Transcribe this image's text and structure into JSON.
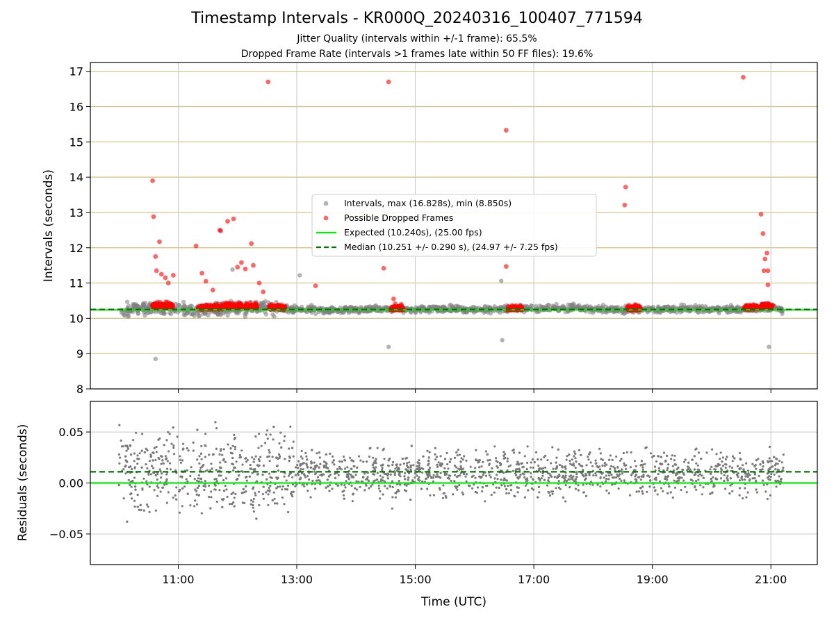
{
  "chart_data": [
    {
      "type": "scatter",
      "panel": "intervals",
      "title": "Timestamp Intervals - KR000Q_20240316_100407_771594",
      "subtitle_lines": [
        "Jitter Quality (intervals within +/-1 frame): 65.5%",
        "Dropped Frame Rate (intervals >1 frames late within 50 FF files): 19.6%"
      ],
      "xlabel": "",
      "ylabel": "Intervals (seconds)",
      "xlim": [
        "09:31",
        "21:47"
      ],
      "ylim": [
        8,
        17.25
      ],
      "yticks": [
        8,
        9,
        10,
        11,
        12,
        13,
        14,
        15,
        16,
        17
      ],
      "xticks": [
        "11:00",
        "13:00",
        "15:00",
        "17:00",
        "19:00",
        "21:00"
      ],
      "grid": true,
      "legend_position": "center",
      "legend": [
        {
          "label": "Intervals, max (16.828s), min (8.850s)",
          "kind": "marker",
          "color": "#808080"
        },
        {
          "label": "Possible Dropped Frames",
          "kind": "marker",
          "color": "#ff0000"
        },
        {
          "label": "Expected (10.240s), (25.00 fps)",
          "kind": "solid-line",
          "color": "#00ee00"
        },
        {
          "label": "Median (10.251 +/- 0.290 s), (24.97 +/- 7.25 fps)",
          "kind": "dashed-line",
          "color": "#007700"
        }
      ],
      "expected_interval": 10.24,
      "median_interval": 10.251,
      "series": [
        {
          "name": "Intervals, max (16.828s), min (8.850s)",
          "color": "#808080",
          "x": [
            "10:02",
            "10:40",
            "11:00",
            "11:30",
            "12:00",
            "12:30",
            "13:00",
            "13:30",
            "14:00",
            "14:30",
            "15:00",
            "15:30",
            "16:00",
            "16:30",
            "17:00",
            "17:30",
            "18:00",
            "18:30",
            "19:00",
            "19:30",
            "20:00",
            "20:30",
            "21:00",
            "21:12"
          ],
          "y": [
            10.25,
            10.3,
            10.28,
            10.22,
            10.27,
            10.3,
            10.26,
            10.23,
            10.25,
            10.28,
            10.24,
            10.26,
            10.25,
            10.27,
            10.28,
            10.3,
            10.26,
            10.24,
            10.25,
            10.27,
            10.26,
            10.25,
            10.3,
            10.24
          ],
          "notable": [
            {
              "x": "10:37",
              "y": 8.85
            },
            {
              "x": "11:55",
              "y": 11.38
            },
            {
              "x": "13:03",
              "y": 11.22
            },
            {
              "x": "14:33",
              "y": 9.19
            },
            {
              "x": "16:27",
              "y": 11.06
            },
            {
              "x": "16:28",
              "y": 9.38
            },
            {
              "x": "20:58",
              "y": 9.19
            }
          ]
        },
        {
          "name": "Possible Dropped Frames",
          "color": "#ff0000",
          "clusters": [
            {
              "x_start": "10:34",
              "x_end": "10:55",
              "y_level": 10.35
            },
            {
              "x_start": "11:20",
              "x_end": "11:45",
              "y_level": 10.3
            },
            {
              "x_start": "11:45",
              "x_end": "12:20",
              "y_level": 10.35
            },
            {
              "x_start": "12:32",
              "x_end": "12:48",
              "y_level": 10.3
            },
            {
              "x_start": "14:35",
              "x_end": "14:48",
              "y_level": 10.28
            },
            {
              "x_start": "16:33",
              "x_end": "16:48",
              "y_level": 10.28
            },
            {
              "x_start": "18:34",
              "x_end": "18:48",
              "y_level": 10.28
            },
            {
              "x_start": "20:32",
              "x_end": "20:48",
              "y_level": 10.3
            },
            {
              "x_start": "20:50",
              "x_end": "21:02",
              "y_level": 10.35
            }
          ],
          "outliers": [
            {
              "x": "10:34",
              "y": 13.9
            },
            {
              "x": "10:35",
              "y": 12.88
            },
            {
              "x": "10:37",
              "y": 11.75
            },
            {
              "x": "10:38",
              "y": 11.35
            },
            {
              "x": "10:41",
              "y": 12.17
            },
            {
              "x": "10:43",
              "y": 11.25
            },
            {
              "x": "10:47",
              "y": 11.15
            },
            {
              "x": "10:50",
              "y": 11.0
            },
            {
              "x": "10:55",
              "y": 11.22
            },
            {
              "x": "11:18",
              "y": 12.05
            },
            {
              "x": "11:24",
              "y": 11.28
            },
            {
              "x": "11:28",
              "y": 11.05
            },
            {
              "x": "11:35",
              "y": 10.8
            },
            {
              "x": "11:42",
              "y": 12.5
            },
            {
              "x": "11:43",
              "y": 12.48
            },
            {
              "x": "11:50",
              "y": 12.75
            },
            {
              "x": "11:56",
              "y": 12.82
            },
            {
              "x": "12:00",
              "y": 11.45
            },
            {
              "x": "12:04",
              "y": 11.58
            },
            {
              "x": "12:08",
              "y": 11.4
            },
            {
              "x": "12:14",
              "y": 12.12
            },
            {
              "x": "12:16",
              "y": 11.5
            },
            {
              "x": "12:22",
              "y": 11.0
            },
            {
              "x": "12:26",
              "y": 10.75
            },
            {
              "x": "12:31",
              "y": 16.7
            },
            {
              "x": "13:19",
              "y": 10.92
            },
            {
              "x": "14:28",
              "y": 11.42
            },
            {
              "x": "14:33",
              "y": 16.7
            },
            {
              "x": "14:38",
              "y": 10.55
            },
            {
              "x": "16:32",
              "y": 15.33
            },
            {
              "x": "16:32",
              "y": 11.47
            },
            {
              "x": "18:33",
              "y": 13.72
            },
            {
              "x": "18:32",
              "y": 13.21
            },
            {
              "x": "20:32",
              "y": 16.83
            },
            {
              "x": "20:50",
              "y": 12.95
            },
            {
              "x": "20:52",
              "y": 12.4
            },
            {
              "x": "20:54",
              "y": 11.68
            },
            {
              "x": "20:56",
              "y": 11.85
            },
            {
              "x": "20:53",
              "y": 11.35
            },
            {
              "x": "20:57",
              "y": 11.35
            },
            {
              "x": "20:57",
              "y": 10.95
            }
          ]
        }
      ]
    },
    {
      "type": "scatter",
      "panel": "residuals",
      "xlabel": "Time (UTC)",
      "ylabel": "Residuals (seconds)",
      "xlim": [
        "09:31",
        "21:47"
      ],
      "ylim": [
        -0.08,
        0.08
      ],
      "yticks": [
        -0.05,
        0.0,
        0.05
      ],
      "ytick_labels": [
        "−0.05",
        "0.00",
        "0.05"
      ],
      "xticks": [
        "11:00",
        "13:00",
        "15:00",
        "17:00",
        "19:00",
        "21:00"
      ],
      "grid": true,
      "expected_residual": 0.0,
      "median_residual": 0.011,
      "series": [
        {
          "name": "",
          "color": "#808080",
          "x_range": [
            "10:00",
            "21:13"
          ],
          "y_center": 0.01,
          "y_spread": 0.08
        }
      ]
    }
  ]
}
